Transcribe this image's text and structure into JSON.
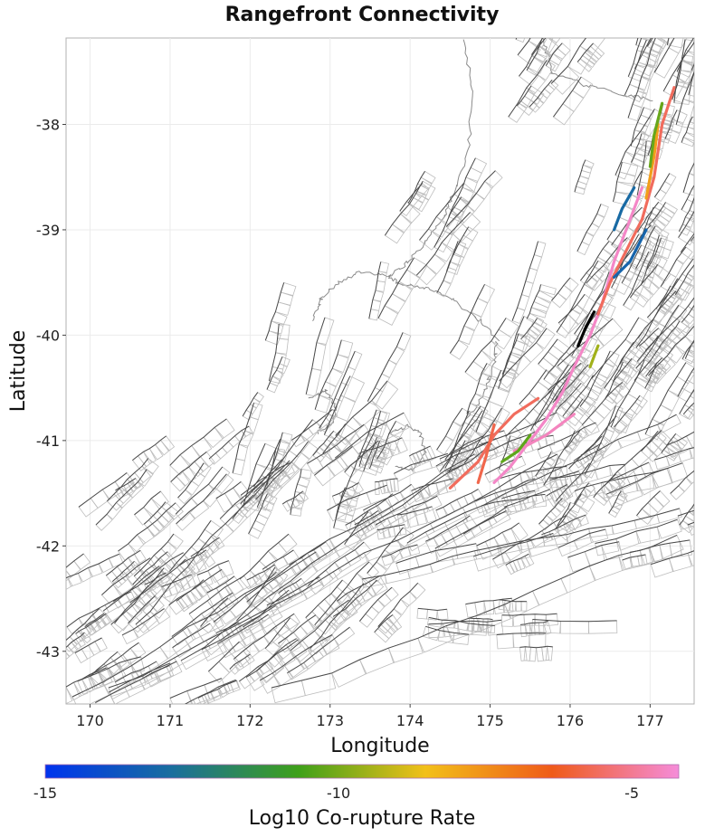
{
  "chart_data": {
    "type": "map",
    "title": "Rangefront Connectivity",
    "xlabel": "Longitude",
    "ylabel": "Latitude",
    "xlim": [
      169.7,
      177.55
    ],
    "ylim": [
      -43.5,
      -37.18
    ],
    "x_ticks": [
      170,
      171,
      172,
      173,
      174,
      175,
      176,
      177
    ],
    "y_ticks": [
      -38,
      -39,
      -40,
      -41,
      -42,
      -43
    ],
    "colorbar": {
      "label": "Log10 Co-rupture Rate",
      "range": [
        -15,
        -4.2
      ],
      "ticks": [
        -15,
        -10,
        -5
      ],
      "colors": [
        "#0033ee",
        "#1a6e9e",
        "#3fa01a",
        "#f2c01a",
        "#ef5a1a",
        "#f58cd9"
      ]
    },
    "highlighted_color": "#000000",
    "coloured_ruptures": [
      {
        "value": -4.4,
        "points": [
          [
            176.9,
            -38.6
          ],
          [
            176.75,
            -38.9
          ],
          [
            176.55,
            -39.3
          ],
          [
            176.4,
            -39.7
          ],
          [
            176.25,
            -40.0
          ],
          [
            176.05,
            -40.3
          ],
          [
            175.9,
            -40.55
          ],
          [
            175.7,
            -40.8
          ],
          [
            175.5,
            -41.0
          ],
          [
            175.25,
            -41.25
          ],
          [
            175.05,
            -41.4
          ]
        ]
      },
      {
        "value": -4.5,
        "points": [
          [
            176.05,
            -40.75
          ],
          [
            175.7,
            -40.95
          ],
          [
            175.45,
            -41.05
          ],
          [
            175.3,
            -41.1
          ]
        ]
      },
      {
        "value": -5.6,
        "points": [
          [
            177.3,
            -37.65
          ],
          [
            177.15,
            -38.0
          ],
          [
            177.05,
            -38.5
          ],
          [
            176.9,
            -38.9
          ],
          [
            176.7,
            -39.2
          ],
          [
            176.5,
            -39.5
          ],
          [
            176.35,
            -39.8
          ]
        ]
      },
      {
        "value": -5.6,
        "points": [
          [
            175.6,
            -40.6
          ],
          [
            175.3,
            -40.75
          ],
          [
            175.05,
            -40.95
          ],
          [
            174.85,
            -41.2
          ],
          [
            174.5,
            -41.45
          ]
        ]
      },
      {
        "value": -5.8,
        "points": [
          [
            174.85,
            -41.4
          ],
          [
            174.95,
            -41.15
          ],
          [
            175.05,
            -40.85
          ]
        ]
      },
      {
        "value": -7.8,
        "points": [
          [
            177.1,
            -38.0
          ],
          [
            177.05,
            -38.3
          ],
          [
            176.95,
            -38.7
          ]
        ]
      },
      {
        "value": -10.2,
        "points": [
          [
            177.15,
            -37.8
          ],
          [
            177.05,
            -38.1
          ],
          [
            177.0,
            -38.4
          ]
        ]
      },
      {
        "value": -10.3,
        "points": [
          [
            175.5,
            -40.95
          ],
          [
            175.35,
            -41.1
          ],
          [
            175.15,
            -41.2
          ]
        ]
      },
      {
        "value": -9.5,
        "points": [
          [
            176.35,
            -40.1
          ],
          [
            176.25,
            -40.3
          ]
        ]
      },
      {
        "value": -13.0,
        "points": [
          [
            176.8,
            -38.6
          ],
          [
            176.65,
            -38.8
          ],
          [
            176.55,
            -39.0
          ]
        ]
      },
      {
        "value": -13.2,
        "points": [
          [
            176.95,
            -39.0
          ],
          [
            176.75,
            -39.3
          ],
          [
            176.55,
            -39.45
          ]
        ]
      }
    ],
    "highlighted_section": [
      [
        176.3,
        -39.78
      ],
      [
        176.2,
        -39.92
      ],
      [
        176.1,
        -40.1
      ]
    ]
  }
}
